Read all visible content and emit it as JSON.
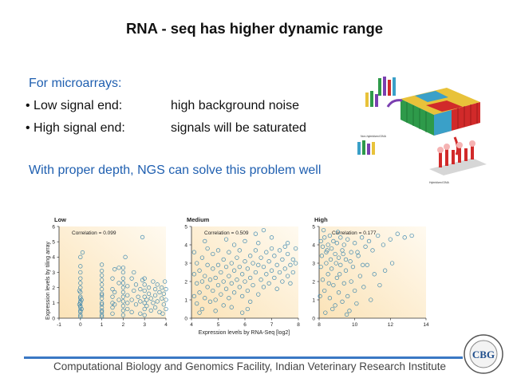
{
  "slide": {
    "title": "RNA - seq has higher dynamic range",
    "subheading": "For microarrays:",
    "bullets": [
      {
        "term": "• Low signal end:",
        "desc": "high background noise"
      },
      {
        "term": "• High signal end:",
        "desc": "signals will be saturated"
      }
    ],
    "ngs_statement": "With proper depth, NGS can solve this problem well",
    "footer": "Computational Biology and Genomics Facility, Indian Veterinary Research Institute"
  },
  "diagram": {
    "label_top": "Non-hybridized DNA",
    "label_bottom": "Hybridized DNA",
    "colors": [
      "#2e9a4a",
      "#d12a2a",
      "#7a3fb0",
      "#3aa0c8",
      "#e8c23a"
    ]
  },
  "logo": {
    "text": "CBG"
  },
  "chart_data": [
    {
      "type": "scatter",
      "title": "Low",
      "annotation": "Correlation = 0.099",
      "xlim": [
        -1,
        4
      ],
      "ylim": [
        0,
        6
      ],
      "xticks": [
        -1,
        0,
        1,
        2,
        3,
        4
      ],
      "yticks": [
        0,
        1,
        2,
        3,
        4,
        5,
        6
      ],
      "ylabel": "Expression levels by tiling array",
      "marker_color": "#1f77a8",
      "points": [
        [
          0,
          0.2
        ],
        [
          0,
          0.5
        ],
        [
          0,
          0.8
        ],
        [
          0,
          1.1
        ],
        [
          0,
          1.4
        ],
        [
          0,
          1.7
        ],
        [
          0,
          2.0
        ],
        [
          0,
          2.3
        ],
        [
          0,
          2.6
        ],
        [
          0,
          3.0
        ],
        [
          0,
          3.4
        ],
        [
          0,
          4.0
        ],
        [
          0,
          0.1
        ],
        [
          0,
          0.4
        ],
        [
          0,
          0.7
        ],
        [
          0,
          1.0
        ],
        [
          0,
          1.3
        ],
        [
          0.05,
          0.6
        ],
        [
          0.05,
          1.2
        ],
        [
          -0.05,
          0.9
        ],
        [
          -0.05,
          1.8
        ],
        [
          1,
          0.1
        ],
        [
          1,
          0.4
        ],
        [
          1,
          0.7
        ],
        [
          1,
          1.0
        ],
        [
          1,
          1.3
        ],
        [
          1,
          1.6
        ],
        [
          1,
          1.9
        ],
        [
          1,
          2.2
        ],
        [
          1,
          2.5
        ],
        [
          1,
          2.8
        ],
        [
          1,
          3.1
        ],
        [
          1,
          3.5
        ],
        [
          1,
          0.2
        ],
        [
          1,
          0.5
        ],
        [
          1,
          0.9
        ],
        [
          1,
          1.5
        ],
        [
          1.5,
          0.3
        ],
        [
          1.5,
          0.7
        ],
        [
          1.5,
          1.0
        ],
        [
          1.5,
          1.4
        ],
        [
          1.5,
          1.9
        ],
        [
          1.5,
          2.6
        ],
        [
          1.6,
          3.2
        ],
        [
          1.6,
          1.7
        ],
        [
          1.6,
          0.9
        ],
        [
          1.8,
          2.3
        ],
        [
          1.8,
          1.2
        ],
        [
          2,
          0.2
        ],
        [
          2,
          0.5
        ],
        [
          2,
          0.8
        ],
        [
          2,
          1.1
        ],
        [
          2,
          1.4
        ],
        [
          2,
          1.7
        ],
        [
          2,
          2.0
        ],
        [
          2,
          2.3
        ],
        [
          2,
          2.6
        ],
        [
          2,
          3.0
        ],
        [
          2,
          3.3
        ],
        [
          2.2,
          0.6
        ],
        [
          2.2,
          1.0
        ],
        [
          2.2,
          1.5
        ],
        [
          2.2,
          2.1
        ],
        [
          2.4,
          1.2
        ],
        [
          2.4,
          2.6
        ],
        [
          2.4,
          0.4
        ],
        [
          2.5,
          1.8
        ],
        [
          2.5,
          3.0
        ],
        [
          2.6,
          0.9
        ],
        [
          2.6,
          2.2
        ],
        [
          2.7,
          1.4
        ],
        [
          2.8,
          0.3
        ],
        [
          2.8,
          1.1
        ],
        [
          2.8,
          1.9
        ],
        [
          2.9,
          2.5
        ],
        [
          3,
          0.2
        ],
        [
          3,
          0.6
        ],
        [
          3,
          1.0
        ],
        [
          3,
          1.4
        ],
        [
          3,
          1.8
        ],
        [
          3,
          2.2
        ],
        [
          3,
          2.6
        ],
        [
          3.1,
          1.2
        ],
        [
          3.1,
          0.8
        ],
        [
          3.2,
          1.6
        ],
        [
          3.2,
          2.0
        ],
        [
          3.3,
          0.5
        ],
        [
          3.3,
          1.3
        ],
        [
          3.4,
          2.4
        ],
        [
          3.4,
          1.0
        ],
        [
          3.5,
          0.7
        ],
        [
          3.5,
          1.5
        ],
        [
          3.5,
          1.9
        ],
        [
          3.6,
          1.1
        ],
        [
          3.6,
          2.2
        ],
        [
          3.7,
          0.4
        ],
        [
          3.7,
          1.7
        ],
        [
          3.8,
          1.3
        ],
        [
          3.8,
          2.0
        ],
        [
          3.9,
          0.9
        ],
        [
          3.9,
          1.6
        ],
        [
          4,
          1.2
        ],
        [
          4,
          1.9
        ],
        [
          4,
          0.6
        ],
        [
          3.95,
          2.4
        ],
        [
          3.85,
          0.3
        ],
        [
          2.9,
          5.3
        ],
        [
          1.8,
          3.3
        ],
        [
          2.1,
          4.0
        ],
        [
          0.1,
          4.3
        ]
      ]
    },
    {
      "type": "scatter",
      "title": "Medium",
      "annotation": "Correlation = 0.509",
      "xlim": [
        4,
        8
      ],
      "ylim": [
        0,
        5
      ],
      "xticks": [
        4,
        5,
        6,
        7,
        8
      ],
      "yticks": [
        0,
        1,
        2,
        3,
        4,
        5
      ],
      "xlabel": "Expression levels by RNA-Seq [log2]",
      "marker_color": "#1f77a8",
      "points": [
        [
          4.1,
          1.2
        ],
        [
          4.1,
          2.4
        ],
        [
          4.2,
          0.8
        ],
        [
          4.2,
          1.9
        ],
        [
          4.2,
          3.0
        ],
        [
          4.3,
          1.4
        ],
        [
          4.3,
          2.6
        ],
        [
          4.4,
          0.5
        ],
        [
          4.4,
          2.0
        ],
        [
          4.4,
          3.3
        ],
        [
          4.5,
          1.1
        ],
        [
          4.5,
          2.3
        ],
        [
          4.6,
          1.7
        ],
        [
          4.6,
          2.9
        ],
        [
          4.6,
          3.8
        ],
        [
          4.7,
          0.9
        ],
        [
          4.7,
          2.1
        ],
        [
          4.8,
          1.5
        ],
        [
          4.8,
          2.7
        ],
        [
          4.8,
          3.5
        ],
        [
          4.9,
          1.0
        ],
        [
          4.9,
          2.2
        ],
        [
          5.0,
          1.8
        ],
        [
          5.0,
          2.9
        ],
        [
          5.0,
          3.7
        ],
        [
          5.1,
          1.3
        ],
        [
          5.1,
          2.5
        ],
        [
          5.2,
          0.7
        ],
        [
          5.2,
          2.0
        ],
        [
          5.2,
          3.2
        ],
        [
          5.3,
          1.6
        ],
        [
          5.3,
          2.8
        ],
        [
          5.4,
          1.1
        ],
        [
          5.4,
          2.3
        ],
        [
          5.4,
          3.6
        ],
        [
          5.5,
          1.9
        ],
        [
          5.5,
          3.0
        ],
        [
          5.6,
          1.4
        ],
        [
          5.6,
          2.6
        ],
        [
          5.6,
          4.0
        ],
        [
          5.7,
          2.1
        ],
        [
          5.7,
          3.3
        ],
        [
          5.8,
          1.7
        ],
        [
          5.8,
          2.8
        ],
        [
          5.8,
          3.7
        ],
        [
          5.9,
          1.2
        ],
        [
          5.9,
          2.4
        ],
        [
          6.0,
          2.0
        ],
        [
          6.0,
          3.1
        ],
        [
          6.0,
          4.2
        ],
        [
          6.1,
          1.5
        ],
        [
          6.1,
          2.7
        ],
        [
          6.2,
          2.2
        ],
        [
          6.2,
          3.4
        ],
        [
          6.2,
          0.9
        ],
        [
          6.3,
          1.8
        ],
        [
          6.3,
          3.0
        ],
        [
          6.4,
          2.5
        ],
        [
          6.4,
          3.7
        ],
        [
          6.5,
          1.3
        ],
        [
          6.5,
          2.9
        ],
        [
          6.5,
          4.1
        ],
        [
          6.6,
          2.1
        ],
        [
          6.6,
          3.3
        ],
        [
          6.7,
          1.7
        ],
        [
          6.7,
          2.8
        ],
        [
          6.8,
          2.4
        ],
        [
          6.8,
          3.6
        ],
        [
          6.9,
          1.9
        ],
        [
          6.9,
          3.1
        ],
        [
          7.0,
          2.6
        ],
        [
          7.0,
          3.8
        ],
        [
          7.1,
          2.2
        ],
        [
          7.1,
          3.4
        ],
        [
          7.2,
          1.6
        ],
        [
          7.2,
          2.9
        ],
        [
          7.3,
          2.5
        ],
        [
          7.3,
          3.7
        ],
        [
          7.4,
          2.0
        ],
        [
          7.4,
          3.2
        ],
        [
          7.5,
          2.7
        ],
        [
          7.5,
          3.9
        ],
        [
          7.6,
          2.3
        ],
        [
          7.6,
          3.5
        ],
        [
          7.7,
          2.9
        ],
        [
          7.7,
          1.9
        ],
        [
          7.8,
          3.2
        ],
        [
          7.8,
          2.5
        ],
        [
          7.9,
          3.0
        ],
        [
          7.9,
          3.8
        ],
        [
          4.3,
          0.3
        ],
        [
          4.9,
          0.4
        ],
        [
          5.5,
          0.6
        ],
        [
          6.1,
          0.5
        ],
        [
          5.3,
          4.3
        ],
        [
          6.4,
          4.6
        ],
        [
          7.0,
          4.4
        ],
        [
          4.5,
          4.2
        ],
        [
          7.6,
          4.1
        ],
        [
          5.9,
          0.3
        ],
        [
          6.7,
          4.8
        ],
        [
          4.1,
          3.6
        ]
      ]
    },
    {
      "type": "scatter",
      "title": "High",
      "annotation": "Correlation = 0.177",
      "xlim": [
        8,
        14
      ],
      "ylim": [
        0,
        5
      ],
      "xticks": [
        8,
        10,
        12,
        14
      ],
      "yticks": [
        0,
        1,
        2,
        3,
        4,
        5
      ],
      "marker_color": "#1f77a8",
      "points": [
        [
          8.1,
          4.2
        ],
        [
          8.2,
          3.9
        ],
        [
          8.3,
          4.4
        ],
        [
          8.4,
          3.6
        ],
        [
          8.5,
          4.0
        ],
        [
          8.6,
          4.5
        ],
        [
          8.7,
          3.8
        ],
        [
          8.8,
          4.2
        ],
        [
          8.9,
          3.5
        ],
        [
          9.0,
          4.1
        ],
        [
          9.1,
          3.3
        ],
        [
          9.2,
          4.4
        ],
        [
          9.3,
          3.7
        ],
        [
          9.4,
          4.0
        ],
        [
          9.5,
          3.2
        ],
        [
          9.6,
          4.3
        ],
        [
          9.8,
          3.6
        ],
        [
          10.0,
          4.1
        ],
        [
          10.2,
          3.4
        ],
        [
          10.4,
          4.4
        ],
        [
          10.6,
          3.9
        ],
        [
          10.8,
          4.2
        ],
        [
          11.0,
          3.7
        ],
        [
          11.3,
          4.5
        ],
        [
          11.6,
          4.0
        ],
        [
          12.0,
          4.3
        ],
        [
          12.4,
          4.6
        ],
        [
          12.8,
          4.4
        ],
        [
          13.2,
          4.5
        ],
        [
          8.1,
          2.8
        ],
        [
          8.2,
          2.1
        ],
        [
          8.3,
          1.5
        ],
        [
          8.4,
          3.0
        ],
        [
          8.5,
          2.4
        ],
        [
          8.6,
          1.1
        ],
        [
          8.7,
          2.7
        ],
        [
          8.8,
          1.8
        ],
        [
          8.9,
          0.7
        ],
        [
          9.0,
          2.2
        ],
        [
          9.1,
          1.4
        ],
        [
          9.2,
          2.9
        ],
        [
          9.3,
          0.9
        ],
        [
          9.4,
          1.9
        ],
        [
          9.5,
          2.6
        ],
        [
          9.6,
          1.2
        ],
        [
          9.7,
          0.4
        ],
        [
          9.8,
          2.0
        ],
        [
          9.9,
          2.8
        ],
        [
          10.0,
          1.5
        ],
        [
          10.1,
          0.8
        ],
        [
          10.3,
          2.3
        ],
        [
          10.5,
          1.7
        ],
        [
          10.7,
          2.9
        ],
        [
          10.9,
          1.0
        ],
        [
          11.1,
          2.4
        ],
        [
          11.4,
          1.8
        ],
        [
          11.7,
          2.6
        ],
        [
          12.1,
          3.0
        ],
        [
          8.05,
          1.2
        ],
        [
          8.15,
          3.4
        ],
        [
          8.35,
          0.3
        ],
        [
          8.45,
          3.7
        ],
        [
          8.55,
          1.9
        ],
        [
          8.65,
          3.2
        ],
        [
          8.75,
          0.5
        ],
        [
          8.95,
          3.0
        ],
        [
          9.15,
          2.4
        ],
        [
          9.35,
          3.5
        ],
        [
          9.55,
          0.2
        ],
        [
          9.75,
          3.1
        ],
        [
          10.15,
          3.6
        ],
        [
          10.45,
          2.9
        ],
        [
          9.05,
          4.7
        ],
        [
          8.25,
          4.8
        ]
      ]
    }
  ]
}
